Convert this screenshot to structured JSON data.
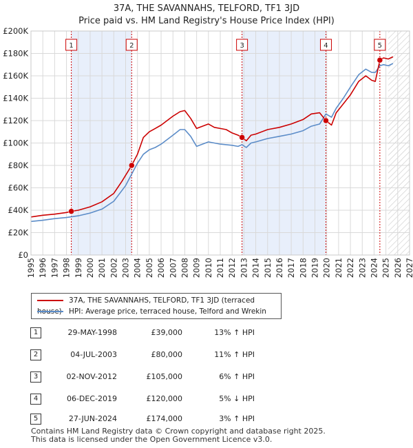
{
  "header": {
    "title_line1": "37A, THE SAVANNAHS, TELFORD, TF1 3JD",
    "title_line2": "Price paid vs. HM Land Registry's House Price Index (HPI)"
  },
  "colors": {
    "property": "#cc0000",
    "hpi": "#5b8cc8",
    "band": "#e8effb",
    "marker_line": "#cc0000"
  },
  "chart_data": {
    "type": "line",
    "title": "Price paid vs. HM Land Registry's House Price Index (HPI)",
    "xlim": [
      1995,
      2027
    ],
    "ylim": [
      0,
      200000
    ],
    "y_ticks": [
      {
        "value": 0,
        "label": "£0"
      },
      {
        "value": 20000,
        "label": "£20K"
      },
      {
        "value": 40000,
        "label": "£40K"
      },
      {
        "value": 60000,
        "label": "£60K"
      },
      {
        "value": 80000,
        "label": "£80K"
      },
      {
        "value": 100000,
        "label": "£100K"
      },
      {
        "value": 120000,
        "label": "£120K"
      },
      {
        "value": 140000,
        "label": "£140K"
      },
      {
        "value": 160000,
        "label": "£160K"
      },
      {
        "value": 180000,
        "label": "£180K"
      },
      {
        "value": 200000,
        "label": "£200K"
      }
    ],
    "x_ticks": [
      "1995",
      "1996",
      "1997",
      "1998",
      "1999",
      "2000",
      "2001",
      "2002",
      "2003",
      "2004",
      "2005",
      "2006",
      "2007",
      "2008",
      "2009",
      "2010",
      "2011",
      "2012",
      "2013",
      "2014",
      "2015",
      "2016",
      "2017",
      "2018",
      "2019",
      "2020",
      "2021",
      "2022",
      "2023",
      "2024",
      "2025",
      "2026",
      "2027"
    ],
    "shaded_ranges": [
      [
        1998.41,
        2003.51
      ],
      [
        2012.84,
        2019.93
      ]
    ],
    "forecast_from": 2025.2,
    "series": [
      {
        "name": "37A, THE SAVANNAHS, TELFORD, TF1 3JD (terraced house)",
        "color": "#cc0000",
        "points": [
          [
            1995.0,
            34000
          ],
          [
            1996.0,
            35500
          ],
          [
            1997.0,
            36500
          ],
          [
            1998.0,
            38000
          ],
          [
            1998.41,
            39000
          ],
          [
            1999.0,
            40000
          ],
          [
            2000.0,
            43000
          ],
          [
            2001.0,
            47500
          ],
          [
            2002.0,
            55000
          ],
          [
            2002.7,
            66000
          ],
          [
            2003.51,
            80000
          ],
          [
            2004.0,
            90000
          ],
          [
            2004.5,
            105000
          ],
          [
            2005.0,
            110000
          ],
          [
            2005.5,
            113000
          ],
          [
            2006.0,
            116000
          ],
          [
            2006.5,
            120000
          ],
          [
            2007.0,
            124000
          ],
          [
            2007.6,
            128000
          ],
          [
            2008.0,
            129000
          ],
          [
            2008.5,
            122000
          ],
          [
            2009.0,
            113000
          ],
          [
            2009.5,
            115000
          ],
          [
            2010.0,
            117000
          ],
          [
            2010.5,
            114000
          ],
          [
            2011.0,
            113000
          ],
          [
            2011.5,
            112000
          ],
          [
            2012.0,
            109000
          ],
          [
            2012.5,
            107000
          ],
          [
            2012.84,
            105000
          ],
          [
            2013.2,
            102000
          ],
          [
            2013.6,
            107000
          ],
          [
            2014.0,
            108000
          ],
          [
            2015.0,
            112000
          ],
          [
            2016.0,
            114000
          ],
          [
            2017.0,
            117000
          ],
          [
            2018.0,
            121000
          ],
          [
            2018.7,
            126000
          ],
          [
            2019.4,
            127000
          ],
          [
            2019.93,
            120000
          ],
          [
            2020.4,
            116000
          ],
          [
            2020.8,
            127000
          ],
          [
            2021.4,
            135000
          ],
          [
            2022.0,
            143000
          ],
          [
            2022.7,
            155000
          ],
          [
            2023.3,
            160000
          ],
          [
            2023.8,
            156000
          ],
          [
            2024.1,
            155000
          ],
          [
            2024.49,
            174000
          ],
          [
            2024.8,
            176000
          ],
          [
            2025.2,
            175000
          ],
          [
            2025.6,
            177000
          ]
        ]
      },
      {
        "name": "HPI: Average price, terraced house, Telford and Wrekin",
        "color": "#5b8cc8",
        "points": [
          [
            1995.0,
            30000
          ],
          [
            1996.0,
            31000
          ],
          [
            1997.0,
            32500
          ],
          [
            1998.0,
            33500
          ],
          [
            1999.0,
            35000
          ],
          [
            2000.0,
            37500
          ],
          [
            2001.0,
            41000
          ],
          [
            2002.0,
            48000
          ],
          [
            2003.0,
            62000
          ],
          [
            2003.5,
            72000
          ],
          [
            2004.0,
            82000
          ],
          [
            2004.5,
            90000
          ],
          [
            2005.0,
            94000
          ],
          [
            2005.5,
            96000
          ],
          [
            2006.0,
            99000
          ],
          [
            2006.5,
            103000
          ],
          [
            2007.0,
            107000
          ],
          [
            2007.6,
            112000
          ],
          [
            2008.0,
            112000
          ],
          [
            2008.5,
            106000
          ],
          [
            2009.0,
            97000
          ],
          [
            2009.5,
            99000
          ],
          [
            2010.0,
            101000
          ],
          [
            2010.5,
            100000
          ],
          [
            2011.0,
            99000
          ],
          [
            2011.5,
            98500
          ],
          [
            2012.0,
            98000
          ],
          [
            2012.5,
            97000
          ],
          [
            2012.84,
            98500
          ],
          [
            2013.2,
            96000
          ],
          [
            2013.6,
            100000
          ],
          [
            2014.0,
            101000
          ],
          [
            2015.0,
            104000
          ],
          [
            2016.0,
            106000
          ],
          [
            2017.0,
            108000
          ],
          [
            2018.0,
            111000
          ],
          [
            2018.7,
            115000
          ],
          [
            2019.4,
            117000
          ],
          [
            2019.93,
            126000
          ],
          [
            2020.4,
            123000
          ],
          [
            2020.8,
            131000
          ],
          [
            2021.4,
            140000
          ],
          [
            2022.0,
            150000
          ],
          [
            2022.7,
            161000
          ],
          [
            2023.3,
            166000
          ],
          [
            2023.8,
            163000
          ],
          [
            2024.1,
            163000
          ],
          [
            2024.49,
            169000
          ],
          [
            2024.8,
            170000
          ],
          [
            2025.2,
            169000
          ],
          [
            2025.6,
            171000
          ]
        ]
      }
    ],
    "sales": [
      {
        "label": "1",
        "x": 1998.41,
        "y": 39000
      },
      {
        "label": "2",
        "x": 2003.51,
        "y": 80000
      },
      {
        "label": "3",
        "x": 2012.84,
        "y": 105000
      },
      {
        "label": "4",
        "x": 2019.93,
        "y": 120000
      },
      {
        "label": "5",
        "x": 2024.49,
        "y": 174000
      }
    ]
  },
  "legend": {
    "property_label": "37A, THE SAVANNAHS, TELFORD, TF1 3JD (terraced house)",
    "hpi_label": "HPI: Average price, terraced house, Telford and Wrekin"
  },
  "transactions": [
    {
      "num": "1",
      "date": "29-MAY-1998",
      "price": "£39,000",
      "hpi": "13% ↑ HPI"
    },
    {
      "num": "2",
      "date": "04-JUL-2003",
      "price": "£80,000",
      "hpi": "11% ↑ HPI"
    },
    {
      "num": "3",
      "date": "02-NOV-2012",
      "price": "£105,000",
      "hpi": "6% ↑ HPI"
    },
    {
      "num": "4",
      "date": "06-DEC-2019",
      "price": "£120,000",
      "hpi": "5% ↓ HPI"
    },
    {
      "num": "5",
      "date": "27-JUN-2024",
      "price": "£174,000",
      "hpi": "3% ↑ HPI"
    }
  ],
  "footer": {
    "line1": "Contains HM Land Registry data © Crown copyright and database right 2025.",
    "line2": "This data is licensed under the Open Government Licence v3.0."
  }
}
